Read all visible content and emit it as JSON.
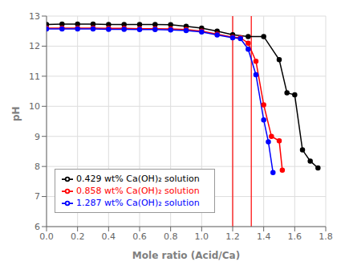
{
  "chart_data": {
    "type": "line",
    "title": "",
    "xlabel": "Mole ratio (Acid/Ca)",
    "ylabel": "pH",
    "xlim": [
      0.0,
      1.8
    ],
    "ylim": [
      6,
      13
    ],
    "xticks": [
      {
        "value": 0.0,
        "label": "0.0"
      },
      {
        "value": 0.2,
        "label": "0.2"
      },
      {
        "value": 0.4,
        "label": "0.4"
      },
      {
        "value": 0.6,
        "label": "0.6"
      },
      {
        "value": 0.8,
        "label": "0.8"
      },
      {
        "value": 1.0,
        "label": "1.0"
      },
      {
        "value": 1.2,
        "label": "1.2"
      },
      {
        "value": 1.4,
        "label": "1.4"
      },
      {
        "value": 1.6,
        "label": "1.6"
      },
      {
        "value": 1.8,
        "label": "1.8"
      }
    ],
    "yticks": [
      6,
      7,
      8,
      9,
      10,
      11,
      12,
      13
    ],
    "grid": true,
    "legend": "lower left",
    "marker": "circle",
    "vlines": {
      "values": [
        1.2,
        1.32
      ],
      "color": "red"
    },
    "series": [
      {
        "name": "0.429 wt% Ca(OH)₂ solution",
        "color": "black",
        "x": [
          0.0,
          0.1,
          0.2,
          0.3,
          0.4,
          0.5,
          0.6,
          0.7,
          0.8,
          0.9,
          1.0,
          1.1,
          1.2,
          1.3,
          1.4,
          1.5,
          1.55,
          1.6,
          1.65,
          1.7,
          1.75
        ],
        "values": [
          12.72,
          12.73,
          12.73,
          12.73,
          12.72,
          12.72,
          12.72,
          12.72,
          12.71,
          12.66,
          12.6,
          12.5,
          12.38,
          12.32,
          12.32,
          11.55,
          10.45,
          10.38,
          8.55,
          8.18,
          7.95
        ]
      },
      {
        "name": "0.858 wt% Ca(OH)₂ solution",
        "color": "red",
        "x": [
          0.0,
          0.1,
          0.2,
          0.3,
          0.4,
          0.5,
          0.6,
          0.7,
          0.8,
          0.9,
          1.0,
          1.1,
          1.2,
          1.25,
          1.3,
          1.35,
          1.4,
          1.45,
          1.5,
          1.52
        ],
        "values": [
          12.6,
          12.6,
          12.6,
          12.6,
          12.59,
          12.59,
          12.58,
          12.58,
          12.57,
          12.55,
          12.5,
          12.4,
          12.3,
          12.28,
          12.1,
          11.5,
          10.05,
          9.0,
          8.85,
          7.88
        ]
      },
      {
        "name": "1.287 wt% Ca(OH)₂ solution",
        "color": "blue",
        "x": [
          0.0,
          0.1,
          0.2,
          0.3,
          0.4,
          0.5,
          0.6,
          0.7,
          0.8,
          0.9,
          1.0,
          1.1,
          1.2,
          1.25,
          1.3,
          1.35,
          1.4,
          1.43,
          1.46
        ],
        "values": [
          12.57,
          12.57,
          12.57,
          12.57,
          12.56,
          12.56,
          12.55,
          12.55,
          12.54,
          12.52,
          12.47,
          12.37,
          12.28,
          12.25,
          11.9,
          11.05,
          9.55,
          8.82,
          7.8
        ]
      }
    ]
  }
}
